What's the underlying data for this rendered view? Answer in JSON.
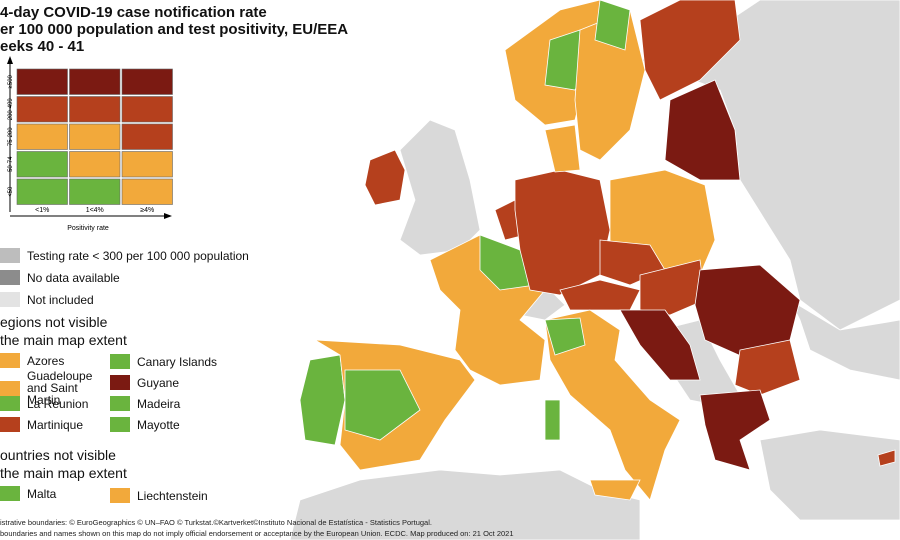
{
  "header": {
    "title_lines": [
      "4-day COVID-19 case notification rate",
      "er 100 000 population and test positivity, EU/EEA",
      "eeks 40 - 41"
    ]
  },
  "legend": {
    "grid": {
      "rows": [
        {
          "label": "≥500",
          "colors": [
            "#7b1a12",
            "#7b1a12",
            "#7b1a12"
          ]
        },
        {
          "label": "200-499",
          "colors": [
            "#b5401d",
            "#b5401d",
            "#b5401d"
          ]
        },
        {
          "label": "75-200",
          "colors": [
            "#f2a93b",
            "#f2a93b",
            "#b5401d"
          ]
        },
        {
          "label": "50-74",
          "colors": [
            "#6ab43e",
            "#f2a93b",
            "#f2a93b"
          ]
        },
        {
          "label": "<50",
          "colors": [
            "#6ab43e",
            "#6ab43e",
            "#f2a93b"
          ]
        }
      ],
      "columns": [
        "<1%",
        "1<4%",
        "≥4%"
      ],
      "x_axis_label": "Positivity rate"
    },
    "status": [
      {
        "label": "Testing rate < 300 per 100 000 population",
        "color": "#bdbdbd"
      },
      {
        "label": "No data available",
        "color": "#8c8c8c"
      },
      {
        "label": "Not included",
        "color": "#e3e3e3"
      }
    ],
    "regions": {
      "heading_lines": [
        "egions not visible",
        "the main map extent"
      ],
      "items": [
        {
          "label": "Azores",
          "color": "#f2a93b"
        },
        {
          "label": "Guadeloupe and Saint Martin",
          "color": "#f2a93b"
        },
        {
          "label": "La Reunion",
          "color": "#6ab43e"
        },
        {
          "label": "Martinique",
          "color": "#b5401d"
        },
        {
          "label": "Canary Islands",
          "color": "#6ab43e"
        },
        {
          "label": "Guyane",
          "color": "#7b1a12"
        },
        {
          "label": "Madeira",
          "color": "#6ab43e"
        },
        {
          "label": "Mayotte",
          "color": "#6ab43e"
        }
      ]
    },
    "countries": {
      "heading_lines": [
        "ountries not visible",
        "the main map extent"
      ],
      "items": [
        {
          "label": "Malta",
          "color": "#6ab43e"
        },
        {
          "label": "Liechtenstein",
          "color": "#f2a93b"
        }
      ]
    }
  },
  "footer": {
    "lines": [
      "istrative boundaries: © EuroGeographics © UN–FAO © Turkstat.©Kartverket©Instituto Nacional de Estatística - Statistics Portugal.",
      "boundaries and names shown on this map do not imply official endorsement or acceptance by the European Union. ECDC. Map produced on: 21 Oct 2021"
    ]
  }
}
